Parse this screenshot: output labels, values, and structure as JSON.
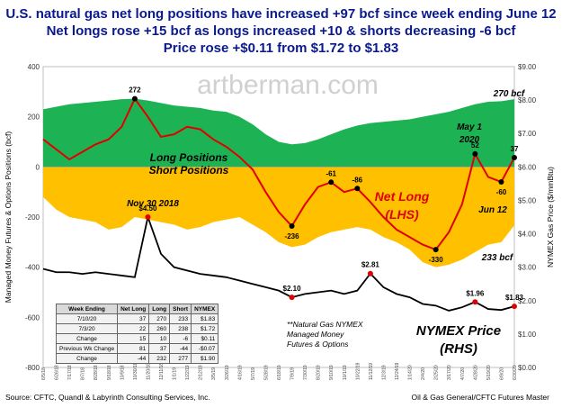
{
  "titles": {
    "line1": "U.S. natural gas net long positions have increased +97 bcf since week ending June 12",
    "line2": "Net longs rose +15 bcf as longs increased +10 & shorts decreasing -6 bcf",
    "line3": "Price rose +$0.11 from $1.72 to $1.83"
  },
  "watermark": "artberman.com",
  "footer": {
    "source": "Source:  CFTC, Quandl & Labyrinth Consulting  Services, Inc.",
    "credit": "Oil & Gas General/CFTC Futures Master"
  },
  "note": [
    "**Natural Gas NYMEX",
    "Managed Money",
    "Futures & Options"
  ],
  "table": {
    "headers": [
      "Week Ending",
      "Net Long",
      "Long",
      "Short",
      "NYMEX"
    ],
    "rows": [
      [
        "7/10/20",
        "37",
        "270",
        "233",
        "$1.83"
      ],
      [
        "7/3/20",
        "22",
        "260",
        "238",
        "$1.72"
      ],
      [
        "Change",
        "15",
        "10",
        "-6",
        "$0.11"
      ],
      [
        "Previous Wk Change",
        "81",
        "37",
        "-44",
        "-$0.07"
      ],
      [
        "Change",
        "-44",
        "232",
        "277",
        "$1.90"
      ]
    ]
  },
  "chart_data": {
    "type": "area",
    "ylabel_left": "Managed Money Futures & Options Positions (bcf)",
    "ylabel_right": "NYMEX Gas Price ($/mmBtu)",
    "ylim_left": [
      -800,
      400
    ],
    "yticks_left": [
      "400",
      "200",
      "0",
      "-200",
      "-400",
      "-600",
      "-800"
    ],
    "ylim_right": [
      0,
      9
    ],
    "yticks_right": [
      "$9.00",
      "$8.00",
      "$7.00",
      "$6.00",
      "$5.00",
      "$4.00",
      "$3.00",
      "$2.00",
      "$1.00",
      "$0.00"
    ],
    "x": [
      "6/5/18",
      "6/26/18",
      "7/17/18",
      "8/7/18",
      "8/28/18",
      "9/18/18",
      "10/9/18",
      "10/30/18",
      "11/20/18",
      "12/11/18",
      "1/1/19",
      "1/22/19",
      "2/12/19",
      "3/5/19",
      "3/26/19",
      "4/16/19",
      "5/7/19",
      "5/28/19",
      "6/18/19",
      "7/9/19",
      "7/30/19",
      "8/20/19",
      "9/10/19",
      "10/1/19",
      "10/22/19",
      "11/12/19",
      "12/3/19",
      "12/24/19",
      "1/14/20",
      "2/4/20",
      "2/25/20",
      "3/17/20",
      "4/7/20",
      "4/28/20",
      "5/19/20",
      "6/9/20",
      "6/30/20"
    ],
    "series": [
      {
        "name": "Long Positions",
        "color": "#1db354",
        "values": [
          230,
          240,
          250,
          255,
          260,
          265,
          270,
          272,
          265,
          255,
          245,
          240,
          235,
          225,
          220,
          200,
          170,
          130,
          100,
          90,
          95,
          110,
          130,
          150,
          165,
          175,
          180,
          185,
          190,
          200,
          210,
          220,
          235,
          250,
          260,
          262,
          270
        ]
      },
      {
        "name": "Short Positions",
        "color": "#ffc000",
        "values": [
          -120,
          -170,
          -200,
          -210,
          -220,
          -250,
          -240,
          -200,
          -210,
          -220,
          -230,
          -250,
          -240,
          -220,
          -210,
          -200,
          -230,
          -260,
          -300,
          -320,
          -310,
          -280,
          -260,
          -250,
          -240,
          -250,
          -280,
          -300,
          -330,
          -380,
          -400,
          -390,
          -370,
          -340,
          -310,
          -300,
          -233
        ]
      },
      {
        "name": "Net Long (LHS)",
        "color": "#e00000",
        "values": [
          110,
          70,
          30,
          60,
          90,
          110,
          160,
          272,
          200,
          120,
          130,
          160,
          150,
          110,
          80,
          40,
          -10,
          -100,
          -180,
          -236,
          -150,
          -80,
          -61,
          -100,
          -86,
          -140,
          -200,
          -250,
          -280,
          -310,
          -330,
          -260,
          -150,
          52,
          -40,
          -60,
          37
        ]
      },
      {
        "name": "NYMEX Price (RHS)",
        "color": "#000000",
        "values": [
          2.95,
          2.85,
          2.85,
          2.8,
          2.85,
          2.8,
          2.75,
          2.7,
          4.5,
          3.4,
          3.0,
          2.9,
          2.8,
          2.75,
          2.7,
          2.6,
          2.5,
          2.4,
          2.3,
          2.1,
          2.2,
          2.25,
          2.3,
          2.2,
          2.3,
          2.81,
          2.4,
          2.2,
          2.1,
          1.9,
          1.85,
          1.7,
          1.8,
          1.96,
          1.75,
          1.72,
          1.83
        ]
      }
    ],
    "labels": {
      "long": "Long Positions",
      "short": "Short Positions",
      "netlong1": "Net Long",
      "netlong2": "(LHS)",
      "nymex1": "NYMEX  Price",
      "nymex2": "(RHS)",
      "nov30": "Nov 30 2018",
      "may1a": "May 1",
      "may1b": "2020",
      "jun12": "Jun 12",
      "end_long": "270 bcf",
      "end_short": "233 bcf"
    },
    "point_labels": [
      {
        "i": 7,
        "s": 2,
        "text": "272"
      },
      {
        "i": 19,
        "s": 2,
        "text": "-236"
      },
      {
        "i": 22,
        "s": 2,
        "text": "-61"
      },
      {
        "i": 24,
        "s": 2,
        "text": "-86"
      },
      {
        "i": 30,
        "s": 2,
        "text": "-330"
      },
      {
        "i": 33,
        "s": 2,
        "text": "52"
      },
      {
        "i": 35,
        "s": 2,
        "text": "-60"
      },
      {
        "i": 36,
        "s": 2,
        "text": "37"
      },
      {
        "i": 8,
        "s": 3,
        "text": "$4.50"
      },
      {
        "i": 19,
        "s": 3,
        "text": "$2.10"
      },
      {
        "i": 25,
        "s": 3,
        "text": "$2.81"
      },
      {
        "i": 33,
        "s": 3,
        "text": "$1.96"
      },
      {
        "i": 36,
        "s": 3,
        "text": "$1.83"
      }
    ]
  }
}
